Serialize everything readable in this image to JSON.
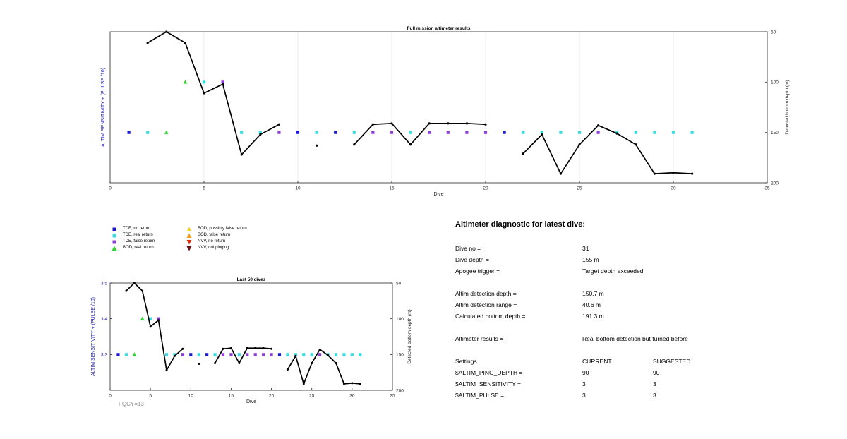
{
  "colors": {
    "tde_no_return": "#1a1ad0",
    "tde_real_return": "#33dde0",
    "tde_false_return": "#8e3ed8",
    "bod_real_return": "#29d629",
    "bod_possibly_false_return": "#f0d020",
    "bod_false_return": "#f0a020",
    "nvv_no_return": "#d03010",
    "nvv_not_pinging": "#6b1010",
    "depth_line": "#000000",
    "left_axis_label": "#2020b0"
  },
  "chart_data": [
    {
      "type": "scatter",
      "title": "Full mission altimeter results",
      "xlabel": "Dive",
      "ylabel_left": "ALTIM SENSITIVITY + (PULSE /10)",
      "ylabel_right": "Detected bottom depth (m)",
      "xlim": [
        0,
        35
      ],
      "ylim_left": [
        3.2,
        3.5
      ],
      "ylim_right_reversed": [
        50,
        200
      ],
      "x_ticks": [
        0,
        5,
        10,
        15,
        20,
        25,
        30,
        35
      ],
      "x_tick_labels": [
        "0",
        "5",
        "10",
        "15",
        "20",
        "25",
        "30",
        "35"
      ],
      "y_right_ticks": [
        50,
        100,
        150,
        200
      ],
      "y_right_tick_labels": [
        "50",
        "100",
        "150",
        "200"
      ],
      "grid": "vertical",
      "depth_series": [
        {
          "x": [
            2,
            3,
            4,
            5,
            6,
            7,
            8,
            9
          ],
          "y": [
            61,
            50,
            61,
            111,
            102,
            172,
            152,
            142
          ]
        },
        {
          "x": [
            11
          ],
          "y": [
            163
          ]
        },
        {
          "x": [
            13,
            14,
            15,
            16,
            17,
            18,
            19,
            20
          ],
          "y": [
            162,
            142,
            141,
            162,
            141,
            141,
            141,
            142
          ]
        },
        {
          "x": [
            22,
            23,
            24,
            25,
            26,
            27,
            28,
            29,
            30,
            31
          ],
          "y": [
            171,
            152,
            191,
            162,
            143,
            151,
            162,
            191,
            190,
            191
          ]
        }
      ],
      "markers": [
        {
          "x": 1,
          "y": 3.3,
          "kind": "tde_no_return"
        },
        {
          "x": 2,
          "y": 3.3,
          "kind": "tde_real_return"
        },
        {
          "x": 3,
          "y": 3.3,
          "kind": "bod_real_return"
        },
        {
          "x": 4,
          "y": 3.4,
          "kind": "bod_real_return"
        },
        {
          "x": 5,
          "y": 3.4,
          "kind": "tde_real_return"
        },
        {
          "x": 6,
          "y": 3.4,
          "kind": "tde_false_return"
        },
        {
          "x": 7,
          "y": 3.3,
          "kind": "tde_real_return"
        },
        {
          "x": 8,
          "y": 3.3,
          "kind": "tde_real_return"
        },
        {
          "x": 9,
          "y": 3.3,
          "kind": "tde_false_return"
        },
        {
          "x": 10,
          "y": 3.3,
          "kind": "tde_no_return"
        },
        {
          "x": 11,
          "y": 3.3,
          "kind": "tde_real_return"
        },
        {
          "x": 12,
          "y": 3.3,
          "kind": "tde_no_return"
        },
        {
          "x": 13,
          "y": 3.3,
          "kind": "tde_real_return"
        },
        {
          "x": 14,
          "y": 3.3,
          "kind": "tde_false_return"
        },
        {
          "x": 15,
          "y": 3.3,
          "kind": "tde_false_return"
        },
        {
          "x": 16,
          "y": 3.3,
          "kind": "tde_real_return"
        },
        {
          "x": 17,
          "y": 3.3,
          "kind": "tde_false_return"
        },
        {
          "x": 18,
          "y": 3.3,
          "kind": "tde_false_return"
        },
        {
          "x": 19,
          "y": 3.3,
          "kind": "tde_false_return"
        },
        {
          "x": 20,
          "y": 3.3,
          "kind": "tde_false_return"
        },
        {
          "x": 21,
          "y": 3.3,
          "kind": "tde_no_return"
        },
        {
          "x": 22,
          "y": 3.3,
          "kind": "tde_real_return"
        },
        {
          "x": 23,
          "y": 3.3,
          "kind": "tde_real_return"
        },
        {
          "x": 24,
          "y": 3.3,
          "kind": "tde_real_return"
        },
        {
          "x": 25,
          "y": 3.3,
          "kind": "tde_real_return"
        },
        {
          "x": 26,
          "y": 3.3,
          "kind": "tde_false_return"
        },
        {
          "x": 27,
          "y": 3.3,
          "kind": "tde_real_return"
        },
        {
          "x": 28,
          "y": 3.3,
          "kind": "tde_real_return"
        },
        {
          "x": 29,
          "y": 3.3,
          "kind": "tde_real_return"
        },
        {
          "x": 30,
          "y": 3.3,
          "kind": "tde_real_return"
        },
        {
          "x": 31,
          "y": 3.3,
          "kind": "tde_real_return"
        }
      ]
    },
    {
      "type": "scatter",
      "title": "Last 50 dives",
      "xlabel": "Dive",
      "ylabel_left": "ALTIM SENSITIVITY + (PULSE /10)",
      "ylabel_right": "Detected bottom depth (m)",
      "xlim": [
        0,
        35
      ],
      "ylim_left": [
        3.2,
        3.5
      ],
      "ylim_right_reversed": [
        50,
        200
      ],
      "x_ticks": [
        0,
        5,
        10,
        15,
        20,
        25,
        30,
        35
      ],
      "x_tick_labels": [
        "0",
        "5",
        "10",
        "15",
        "20",
        "25",
        "30",
        "35"
      ],
      "y_left_ticks": [
        3.3,
        3.4,
        3.5
      ],
      "y_left_tick_labels": [
        "3.3",
        "3.4",
        "3.5"
      ],
      "y_right_ticks": [
        50,
        100,
        150,
        200
      ],
      "y_right_tick_labels": [
        "50",
        "100",
        "150",
        "200"
      ],
      "grid": "none",
      "same_data_as_full_mission": true
    }
  ],
  "legend": {
    "items": [
      {
        "label": "TDE, no return",
        "kind": "tde_no_return",
        "shape": "square"
      },
      {
        "label": "TDE, real return",
        "kind": "tde_real_return",
        "shape": "square"
      },
      {
        "label": "TDE, false return",
        "kind": "tde_false_return",
        "shape": "square"
      },
      {
        "label": "BOD, real return",
        "kind": "bod_real_return",
        "shape": "triangle-up"
      },
      {
        "label": "BOD, possibly false return",
        "kind": "bod_possibly_false_return",
        "shape": "triangle-up"
      },
      {
        "label": "BOD, false return",
        "kind": "bod_false_return",
        "shape": "triangle-up"
      },
      {
        "label": "NVV, no return",
        "kind": "nvv_no_return",
        "shape": "triangle-down"
      },
      {
        "label": "NVV, not pinging",
        "kind": "nvv_not_pinging",
        "shape": "triangle-down"
      }
    ]
  },
  "fqcy": "FQCY=13",
  "diagnostic": {
    "title": "Altimeter diagnostic for latest dive:",
    "dive_no_label": "Dive no =",
    "dive_no": "31",
    "dive_depth_label": "Dive depth =",
    "dive_depth": "155 m",
    "apogee_label": "Apogee trigger =",
    "apogee": "Target depth exceeded",
    "detection_depth_label": "Altim detection depth =",
    "detection_depth": "150.7 m",
    "detection_range_label": "Altim detection range =",
    "detection_range": "40.6 m",
    "bottom_depth_label": "Calculated bottom depth =",
    "bottom_depth": "191.3 m",
    "results_label": "Altimeter results =",
    "results": "Real bottom detection but turned before",
    "settings_label": "Settings",
    "current_label": "CURRENT",
    "suggested_label": "SUGGESTED",
    "settings": [
      {
        "name": "$ALTIM_PING_DEPTH =",
        "current": "90",
        "suggested": "90"
      },
      {
        "name": "$ALTIM_SENSITIVITY =",
        "current": "3",
        "suggested": "3"
      },
      {
        "name": "$ALTIM_PULSE =",
        "current": "3",
        "suggested": "3"
      }
    ]
  }
}
